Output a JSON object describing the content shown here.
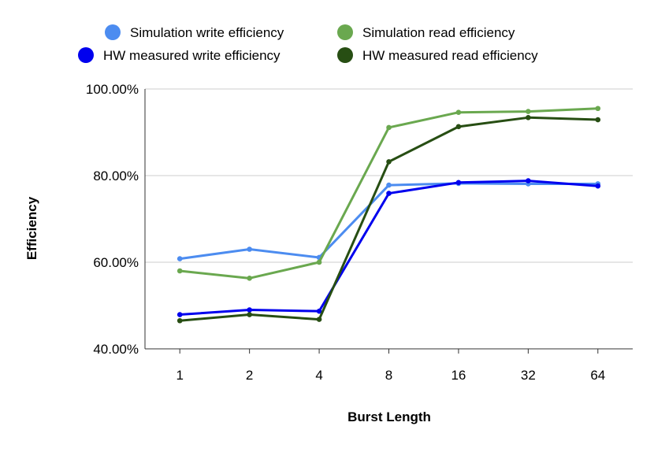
{
  "chart_data": {
    "type": "line",
    "title": "",
    "xlabel": "Burst Length",
    "ylabel": "Efficiency",
    "categories": [
      "1",
      "2",
      "4",
      "8",
      "16",
      "32",
      "64"
    ],
    "ylim": [
      40,
      100
    ],
    "yticks": [
      40,
      60,
      80,
      100
    ],
    "ytick_labels": [
      "40.00%",
      "60.00%",
      "80.00%",
      "100.00%"
    ],
    "grid": true,
    "legend_position": "top",
    "series": [
      {
        "name": "Simulation write efficiency",
        "color": "#4c8cf0",
        "values": [
          60.8,
          63.0,
          61.1,
          77.8,
          78.2,
          78.1,
          78.1
        ]
      },
      {
        "name": "Simulation read efficiency",
        "color": "#6aa84f",
        "values": [
          58.0,
          56.3,
          60.0,
          91.1,
          94.6,
          94.8,
          95.5
        ]
      },
      {
        "name": "HW measured write efficiency",
        "color": "#0000ee",
        "values": [
          47.9,
          49.0,
          48.7,
          75.9,
          78.4,
          78.8,
          77.6
        ]
      },
      {
        "name": "HW measured read efficiency",
        "color": "#274e13",
        "values": [
          46.5,
          47.9,
          46.8,
          83.2,
          91.3,
          93.4,
          92.9
        ]
      }
    ]
  }
}
